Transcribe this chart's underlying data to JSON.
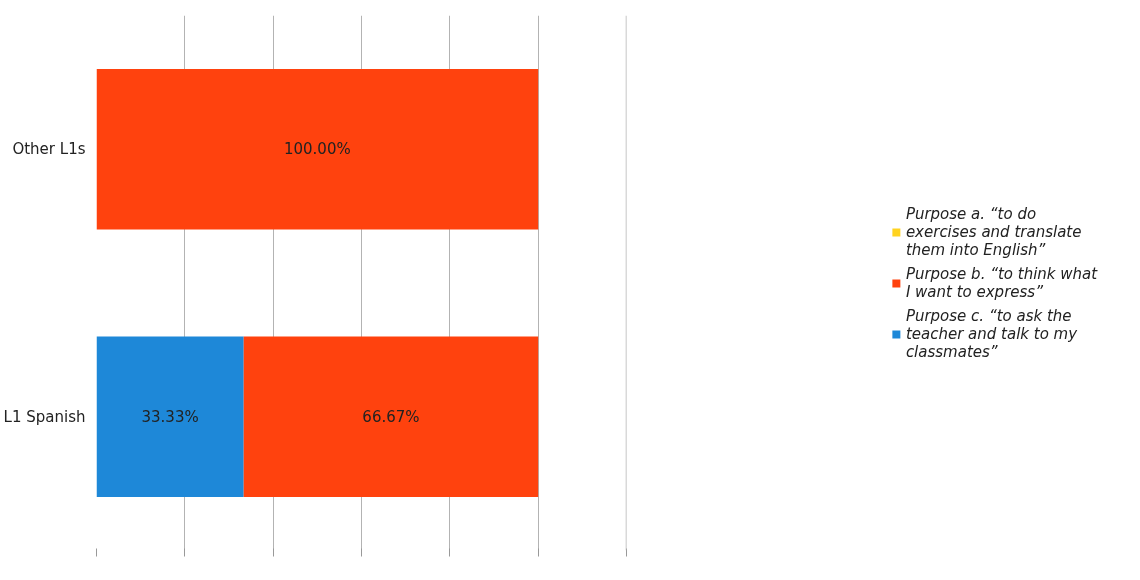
{
  "chart_data": {
    "type": "bar",
    "orientation": "horizontal",
    "stacked": true,
    "categories": [
      "Other L1s",
      "L1 Spanish"
    ],
    "series": [
      {
        "name": "Purpose c. “to ask the teacher and talk to my classmates”",
        "color": "#1e88d8",
        "values": [
          0,
          33.33
        ],
        "value_labels": [
          null,
          "33.33%"
        ]
      },
      {
        "name": "Purpose b. “to think what I want to express”",
        "color": "#ff420e",
        "values": [
          100,
          66.67
        ],
        "value_labels": [
          "100.00%",
          "66.67%"
        ]
      },
      {
        "name": "Purpose a. “to do exercises and translate them into English”",
        "color": "#ffd320",
        "values": [
          0,
          0
        ],
        "value_labels": [
          null,
          null
        ]
      }
    ],
    "xlim": [
      0,
      120
    ],
    "xticks": [
      {
        "value": 0,
        "label": null
      },
      {
        "value": 20,
        "label": null
      },
      {
        "value": 40,
        "label": null
      },
      {
        "value": 60,
        "label": null
      },
      {
        "value": 80,
        "label": null
      },
      {
        "value": 100,
        "label": null
      },
      {
        "value": 120,
        "label": null
      }
    ],
    "tick_labels": "y",
    "grid": "x",
    "legend": "right"
  }
}
